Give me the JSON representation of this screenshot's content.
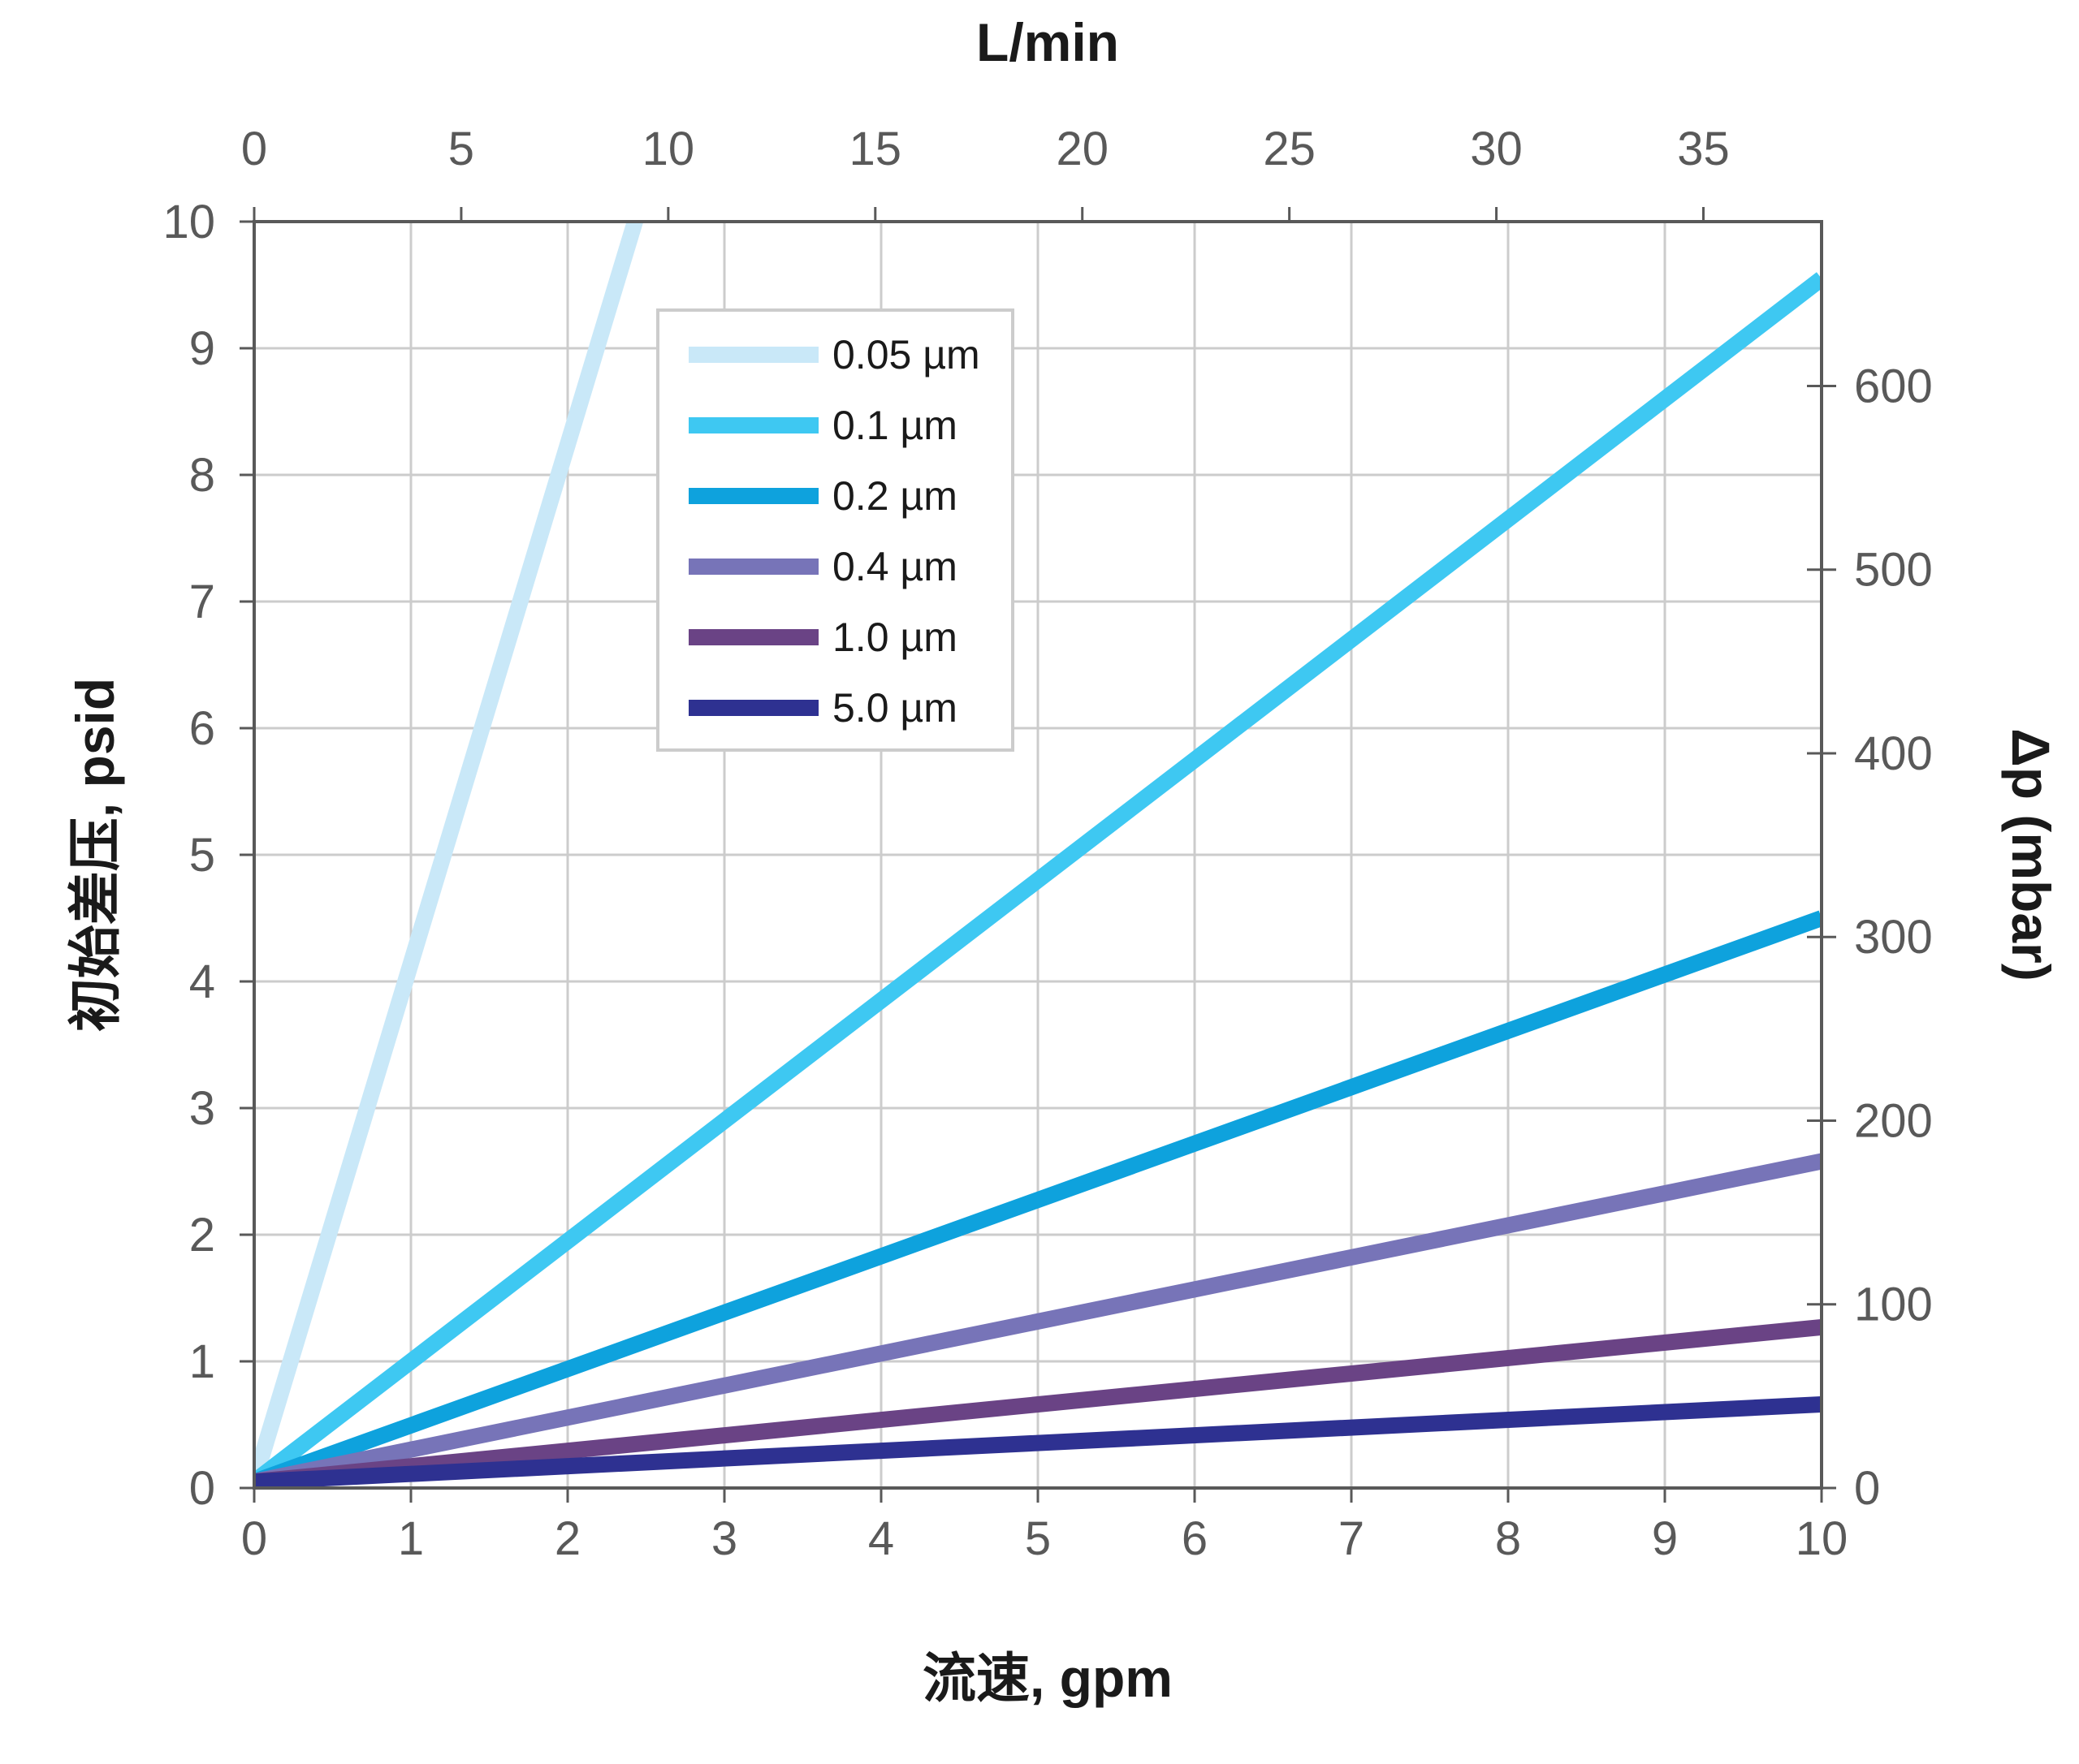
{
  "chart_data": {
    "type": "line",
    "x": [
      0,
      10
    ],
    "xlabel": "流速, gpm",
    "ylabel": "初始差压, psid",
    "xlim": [
      0,
      10
    ],
    "ylim": [
      0,
      10
    ],
    "x_ticks": [
      "0",
      "1",
      "2",
      "3",
      "4",
      "5",
      "6",
      "7",
      "8",
      "9",
      "10"
    ],
    "y_ticks": [
      "0",
      "1",
      "2",
      "3",
      "4",
      "5",
      "6",
      "7",
      "8",
      "9",
      "10"
    ],
    "x2label": "L/min",
    "x2lim": [
      0,
      37.854
    ],
    "x2_ticks": [
      "0",
      "5",
      "10",
      "15",
      "20",
      "25",
      "30",
      "35"
    ],
    "y2label": "Δp (mbar)",
    "y2lim": [
      0,
      689.5
    ],
    "y2_ticks": [
      "0",
      "100",
      "200",
      "300",
      "400",
      "500",
      "600"
    ],
    "grid": true,
    "legend_position": "top-left",
    "series": [
      {
        "name": "0.05 µm",
        "color": "#c9e8f8",
        "values": [
          0.05,
          41
        ]
      },
      {
        "name": "0.1 µm",
        "color": "#3ec8f2",
        "values": [
          0.05,
          9.55
        ]
      },
      {
        "name": "0.2 µm",
        "color": "#0ea2dd",
        "values": [
          0.05,
          4.5
        ]
      },
      {
        "name": "0.4 µm",
        "color": "#7774b8",
        "values": [
          0.05,
          2.58
        ]
      },
      {
        "name": "1.0 µm",
        "color": "#6a4385",
        "values": [
          0.05,
          1.27
        ]
      },
      {
        "name": "5.0 µm",
        "color": "#2e3191",
        "values": [
          0.05,
          0.66
        ]
      }
    ]
  }
}
